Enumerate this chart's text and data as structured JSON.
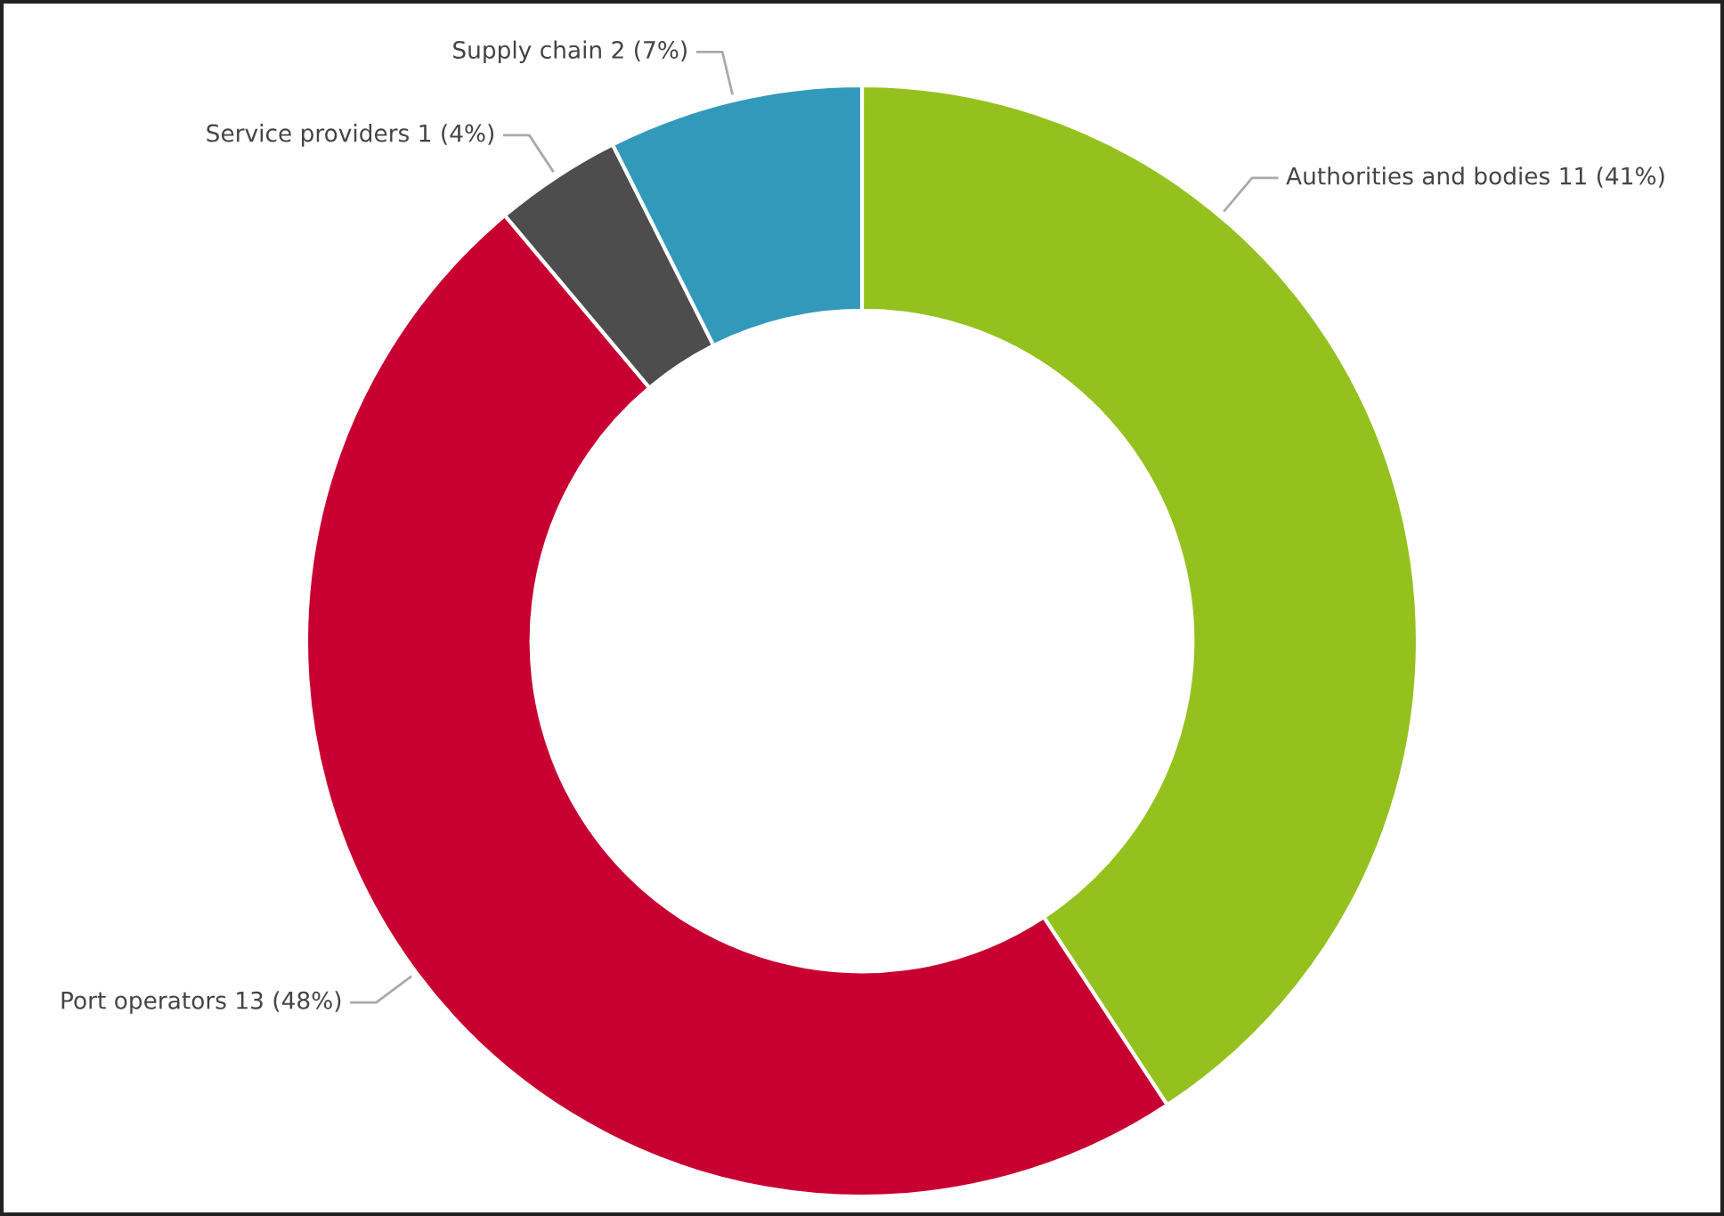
{
  "chart_data": {
    "type": "donut",
    "categories": [
      "Authorities and bodies",
      "Port operators",
      "Service providers",
      "Supply chain"
    ],
    "values": [
      11,
      13,
      1,
      2
    ],
    "value_labels": [
      "11 (41%)",
      "13 (48%)",
      "1 (4%)",
      "2 (7%)"
    ],
    "colors": [
      "#95c11f",
      "#c80032",
      "#4d4d4d",
      "#3399bb"
    ],
    "legend": false
  }
}
